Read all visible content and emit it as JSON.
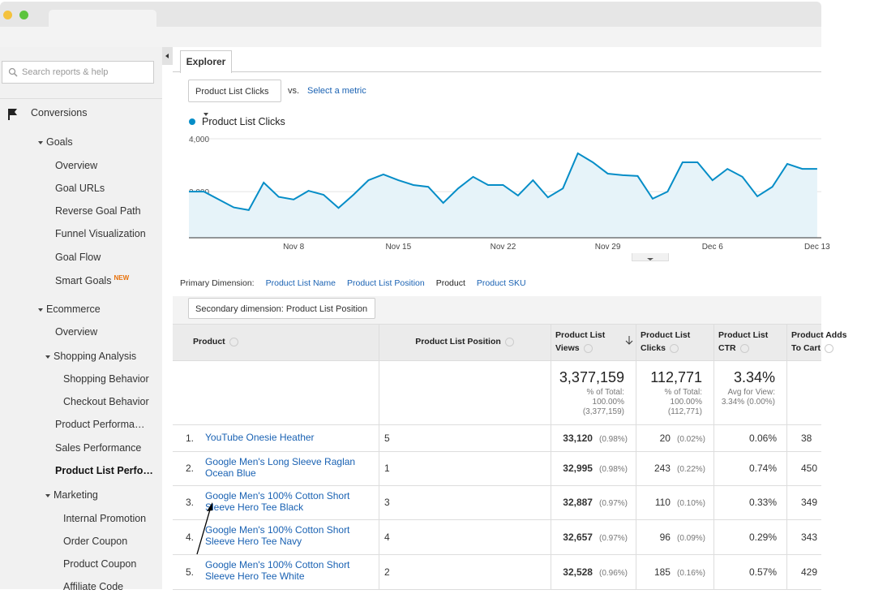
{
  "sidebar": {
    "search_placeholder": "Search reports & help",
    "new_badge": "NEW",
    "items": [
      "Conversions",
      "Goals",
      "Overview",
      "Goal URLs",
      "Reverse Goal Path",
      "Funnel Visualization",
      "Goal Flow",
      "Smart Goals",
      "Ecommerce",
      "Overview",
      "Shopping Analysis",
      "Shopping Behavior",
      "Checkout Behavior",
      "Product Performa…",
      "Sales Performance",
      "Product List Perfo…",
      "Marketing",
      "Internal Promotion",
      "Order Coupon",
      "Product Coupon",
      "Affiliate Code"
    ]
  },
  "tab": "Explorer",
  "metric_selector": {
    "metric": "Product List Clicks",
    "vs": "vs.",
    "select_metric": "Select a metric"
  },
  "chart_data": {
    "type": "line",
    "categories": [
      null,
      null,
      null,
      null,
      null,
      null,
      null,
      "Nov 8",
      null,
      null,
      null,
      null,
      null,
      null,
      "Nov 15",
      null,
      null,
      null,
      null,
      null,
      null,
      "Nov 22",
      null,
      null,
      null,
      null,
      null,
      null,
      "Nov 29",
      null,
      null,
      null,
      null,
      null,
      null,
      "Dec 6",
      null,
      null,
      null,
      null,
      null,
      null,
      "Dec 13"
    ],
    "series": [
      {
        "name": "Product List Clicks",
        "color": "#058dc7",
        "values": [
          2000,
          2000,
          1700,
          1400,
          1300,
          2340,
          1800,
          1700,
          2030,
          1880,
          1380,
          1880,
          2430,
          2650,
          2430,
          2250,
          2180,
          1570,
          2120,
          2560,
          2250,
          2250,
          1850,
          2430,
          1780,
          2120,
          3450,
          3110,
          2680,
          2620,
          2590,
          1730,
          2000,
          3110,
          3110,
          2430,
          2860,
          2560,
          1820,
          2180,
          3050,
          2860,
          2860
        ]
      }
    ],
    "ylim": [
      250,
      4340
    ],
    "yticks": [
      {
        "value": 2000,
        "label": "2,000"
      },
      {
        "value": 4000,
        "label": "4,000"
      }
    ],
    "grid": true
  },
  "dimensions": {
    "label": "Primary Dimension:",
    "options": [
      {
        "label": "Product List Name",
        "selected": false
      },
      {
        "label": "Product List Position",
        "selected": false
      },
      {
        "label": "Product",
        "selected": true
      },
      {
        "label": "Product SKU",
        "selected": false
      }
    ]
  },
  "secondary_dimension": "Secondary dimension: Product List Position",
  "table": {
    "columns": [
      "Product",
      "Product List Position",
      "Product List Views",
      "Product List Clicks",
      "Product List CTR",
      "Product Adds To Cart"
    ],
    "totals": [
      {
        "value": "3,377,159",
        "note": [
          "% of Total:",
          "100.00%",
          "(3,377,159)"
        ]
      },
      {
        "value": "112,771",
        "note": [
          "% of Total:",
          "100.00%",
          "(112,771)"
        ]
      },
      {
        "value": "3.34%",
        "note": [
          "Avg for View:",
          "3.34% (0.00%)"
        ]
      }
    ],
    "rows": [
      {
        "index": "1.",
        "product": "YouTube Onesie Heather",
        "position": "5",
        "views": "33,120",
        "views_pct": "(0.98%)",
        "clicks": "20",
        "clicks_pct": "(0.02%)",
        "ctr": "0.06%",
        "cart": "38"
      },
      {
        "index": "2.",
        "product": "Google Men's Long Sleeve Raglan Ocean Blue",
        "position": "1",
        "views": "32,995",
        "views_pct": "(0.98%)",
        "clicks": "243",
        "clicks_pct": "(0.22%)",
        "ctr": "0.74%",
        "cart": "450"
      },
      {
        "index": "3.",
        "product": "Google Men's 100% Cotton Short Sleeve Hero Tee Black",
        "position": "3",
        "views": "32,887",
        "views_pct": "(0.97%)",
        "clicks": "110",
        "clicks_pct": "(0.10%)",
        "ctr": "0.33%",
        "cart": "349"
      },
      {
        "index": "4.",
        "product": "Google Men's 100% Cotton Short Sleeve Hero Tee Navy",
        "position": "4",
        "views": "32,657",
        "views_pct": "(0.97%)",
        "clicks": "96",
        "clicks_pct": "(0.09%)",
        "ctr": "0.29%",
        "cart": "343"
      },
      {
        "index": "5.",
        "product": "Google Men's 100% Cotton Short Sleeve Hero Tee White",
        "position": "2",
        "views": "32,528",
        "views_pct": "(0.96%)",
        "clicks": "185",
        "clicks_pct": "(0.16%)",
        "ctr": "0.57%",
        "cart": "429"
      }
    ]
  }
}
